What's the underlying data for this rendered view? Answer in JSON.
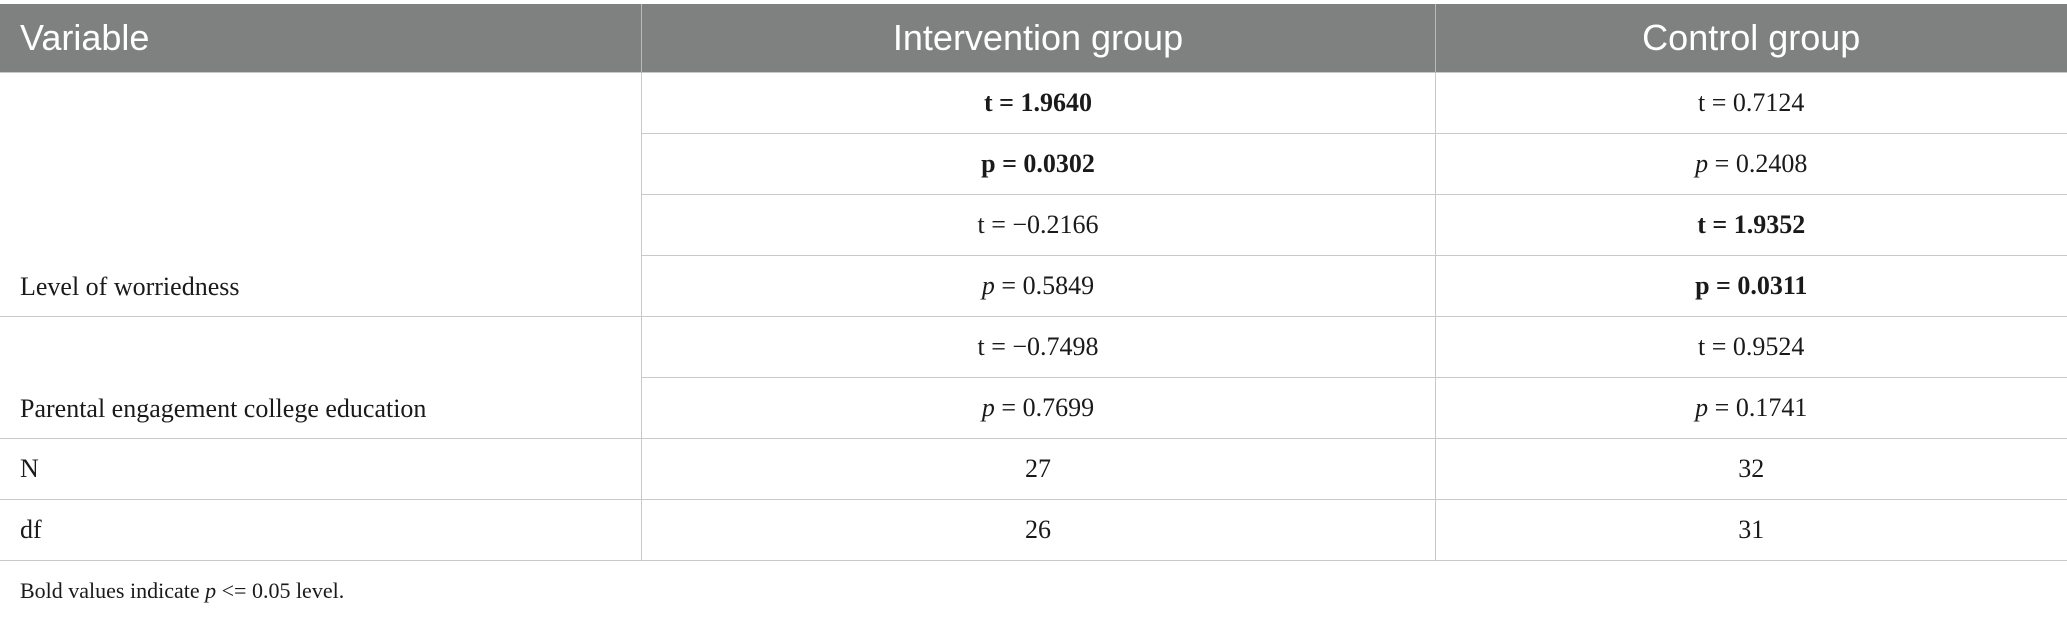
{
  "table": {
    "headers": {
      "variable": "Variable",
      "intervention": "Intervention group",
      "control": "Control group"
    },
    "worriedness": {
      "label": "Level of worriedness",
      "rows": [
        {
          "intervention": "t = 1.9640",
          "intervention_bold": true,
          "control": "t = 0.7124",
          "control_bold": false
        },
        {
          "intervention_prefix": "p",
          "intervention": " = 0.0302",
          "intervention_bold": true,
          "control_prefix": "p",
          "control": " = 0.2408",
          "control_bold": false
        },
        {
          "intervention": "t = −0.2166",
          "intervention_bold": false,
          "control": "t = 1.9352",
          "control_bold": true
        },
        {
          "intervention_prefix": "p",
          "intervention": " = 0.5849",
          "intervention_bold": false,
          "control_prefix": "p",
          "control": " = 0.0311",
          "control_bold": true
        }
      ]
    },
    "parental": {
      "label": "Parental engagement college education",
      "rows": [
        {
          "intervention": "t = −0.7498",
          "control": "t = 0.9524"
        },
        {
          "intervention_prefix": "p",
          "intervention": " = 0.7699",
          "control_prefix": "p",
          "control": " = 0.1741"
        }
      ]
    },
    "n": {
      "label": "N",
      "intervention": "27",
      "control": "32"
    },
    "df": {
      "label": "df",
      "intervention": "26",
      "control": "31"
    }
  },
  "footnote": {
    "prefix": "Bold values indicate ",
    "italic": "p",
    "suffix": " <= 0.05 level."
  }
}
